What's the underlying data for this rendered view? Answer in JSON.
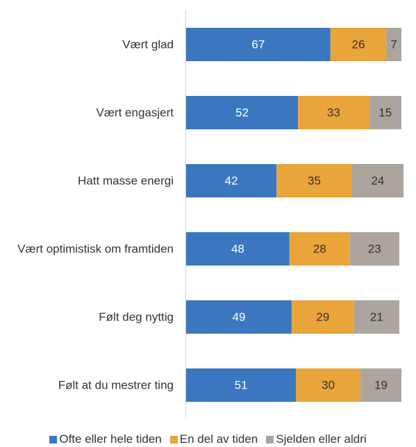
{
  "chart_data": {
    "type": "stacked_barh",
    "categories": [
      "Vært glad",
      "Vært engasjert",
      "Hatt masse energi",
      "Vært optimistisk om framtiden",
      "Følt deg nyttig",
      "Følt at du mestrer ting"
    ],
    "series": [
      {
        "name": "Ofte eller hele tiden",
        "color": "#3a77c0",
        "values": [
          67,
          52,
          42,
          48,
          49,
          51
        ]
      },
      {
        "name": "En del av tiden",
        "color": "#e9a43a",
        "values": [
          26,
          33,
          35,
          28,
          29,
          30
        ]
      },
      {
        "name": "Sjelden eller aldri",
        "color": "#aba59e",
        "values": [
          7,
          15,
          24,
          23,
          21,
          19
        ]
      }
    ],
    "xlim": [
      0,
      100
    ]
  }
}
